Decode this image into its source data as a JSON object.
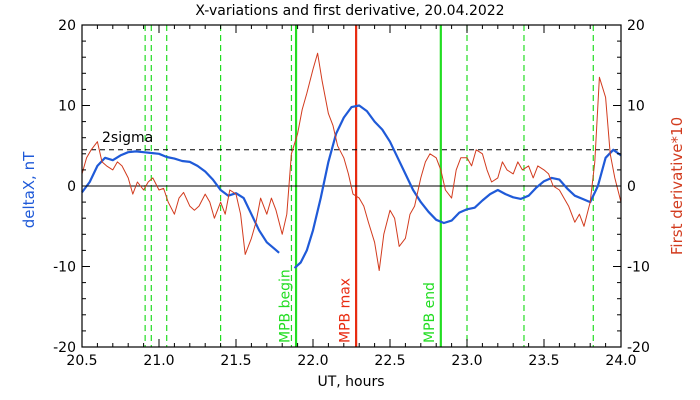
{
  "chart_data": {
    "type": "line",
    "title": "X-variations and first derivative, 20.04.2022",
    "xlabel": "UT, hours",
    "ylabel_left": "deltaX, nT",
    "ylabel_right": "First derivative*10",
    "xlim": [
      20.5,
      24.0
    ],
    "ylim": [
      -20,
      20
    ],
    "x_ticks": [
      20.5,
      21.0,
      21.5,
      22.0,
      22.5,
      23.0,
      23.5,
      24.0
    ],
    "y_ticks": [
      -20,
      -10,
      0,
      10,
      20
    ],
    "sigma_level": 4.5,
    "sigma_label": "2sigma",
    "colors": {
      "deltaX": "#1f5ad8",
      "derivative": "#d23b1e",
      "mpb_edge": "#22dd22",
      "mpb_max": "#e82a10",
      "axes": "#000000"
    },
    "series": [
      {
        "name": "deltaX, nT",
        "x": [
          20.5,
          20.55,
          20.6,
          20.65,
          20.7,
          20.75,
          20.8,
          20.85,
          20.9,
          20.95,
          21.0,
          21.05,
          21.1,
          21.15,
          21.2,
          21.25,
          21.3,
          21.35,
          21.4,
          21.45,
          21.5,
          21.55,
          21.6,
          21.65,
          21.7,
          21.75,
          21.78
        ],
        "values": [
          -0.8,
          0.5,
          2.5,
          3.5,
          3.2,
          3.8,
          4.2,
          4.3,
          4.2,
          4.1,
          4.0,
          3.6,
          3.4,
          3.1,
          3.0,
          2.5,
          1.8,
          0.8,
          -0.5,
          -1.2,
          -0.9,
          -1.5,
          -3.5,
          -5.5,
          -7.0,
          -7.8,
          -8.3
        ]
      },
      {
        "name": "deltaX, nT",
        "x": [
          21.88,
          21.92,
          21.96,
          22.0,
          22.05,
          22.1,
          22.15,
          22.2,
          22.25,
          22.3,
          22.35,
          22.4,
          22.45,
          22.5,
          22.55,
          22.6,
          22.65,
          22.7,
          22.75,
          22.8,
          22.85,
          22.9,
          22.95,
          23.0,
          23.05,
          23.1,
          23.15,
          23.2,
          23.25,
          23.3,
          23.35,
          23.4,
          23.45,
          23.5,
          23.55,
          23.6,
          23.65,
          23.7,
          23.75,
          23.8,
          23.85,
          23.9,
          23.95,
          24.0
        ],
        "values": [
          -10.2,
          -9.5,
          -8.0,
          -5.5,
          -1.5,
          3.0,
          6.5,
          8.5,
          9.8,
          10.0,
          9.3,
          8.0,
          7.0,
          5.5,
          3.5,
          1.5,
          -0.5,
          -2.0,
          -3.2,
          -4.2,
          -4.6,
          -4.3,
          -3.3,
          -2.9,
          -2.7,
          -1.8,
          -1.0,
          -0.5,
          -1.0,
          -1.4,
          -1.6,
          -1.2,
          -0.2,
          0.6,
          1.0,
          0.8,
          -0.3,
          -1.2,
          -1.6,
          -2.0,
          0.0,
          3.5,
          4.5,
          3.8
        ]
      },
      {
        "name": "First derivative*10",
        "x": [
          20.5,
          20.53,
          20.56,
          20.6,
          20.63,
          20.66,
          20.7,
          20.73,
          20.76,
          20.8,
          20.83,
          20.86,
          20.9,
          20.93,
          20.96,
          21.0,
          21.03,
          21.06,
          21.1,
          21.13,
          21.16,
          21.2,
          21.23,
          21.26,
          21.3,
          21.33,
          21.36,
          21.4,
          21.43,
          21.46,
          21.5,
          21.53,
          21.56,
          21.6,
          21.63,
          21.66,
          21.7,
          21.73,
          21.76,
          21.8,
          21.83,
          21.86,
          21.9,
          21.93,
          21.96,
          22.0,
          22.03,
          22.06,
          22.1,
          22.13,
          22.16,
          22.2,
          22.23,
          22.26,
          22.3,
          22.33,
          22.36,
          22.4,
          22.43,
          22.46,
          22.5,
          22.53,
          22.56,
          22.6,
          22.63,
          22.66,
          22.7,
          22.73,
          22.76,
          22.8,
          22.83,
          22.86,
          22.9,
          22.93,
          22.96,
          23.0,
          23.03,
          23.06,
          23.1,
          23.13,
          23.16,
          23.2,
          23.23,
          23.26,
          23.3,
          23.33,
          23.36,
          23.4,
          23.43,
          23.46,
          23.5,
          23.53,
          23.56,
          23.6,
          23.63,
          23.66,
          23.7,
          23.73,
          23.76,
          23.8,
          23.83,
          23.86,
          23.9,
          23.93,
          23.96,
          24.0
        ],
        "values": [
          1.5,
          3.5,
          4.5,
          5.5,
          3.0,
          2.5,
          2.0,
          3.0,
          2.5,
          1.0,
          -1.0,
          0.5,
          -0.5,
          0.5,
          1.0,
          -0.5,
          -0.3,
          -2.0,
          -3.5,
          -1.5,
          -0.8,
          -2.5,
          -3.0,
          -2.5,
          -1.0,
          -2.0,
          -4.0,
          -2.0,
          -3.5,
          -0.5,
          -1.0,
          -3.5,
          -8.5,
          -6.5,
          -4.5,
          -1.5,
          -3.5,
          -1.5,
          -3.0,
          -6.0,
          -3.5,
          4.0,
          6.5,
          9.5,
          11.5,
          14.5,
          16.5,
          13.0,
          9.0,
          7.5,
          5.0,
          3.5,
          1.5,
          -1.0,
          -1.5,
          -2.5,
          -4.5,
          -7.0,
          -10.5,
          -6.0,
          -3.0,
          -4.0,
          -7.5,
          -6.5,
          -3.5,
          -2.5,
          1.0,
          3.0,
          4.0,
          3.5,
          2.0,
          -0.5,
          -1.5,
          2.0,
          3.5,
          3.5,
          2.5,
          4.5,
          4.0,
          2.0,
          0.5,
          1.0,
          3.0,
          2.0,
          1.5,
          3.0,
          2.0,
          2.5,
          1.0,
          2.5,
          2.0,
          1.5,
          0.0,
          -0.5,
          -1.5,
          -2.5,
          -4.5,
          -3.5,
          -5.0,
          -2.0,
          3.0,
          13.5,
          11.0,
          4.0,
          1.0,
          -2.0
        ]
      }
    ],
    "reference_lines": [
      {
        "x": 20.91,
        "style": "dashed",
        "kind": "edge"
      },
      {
        "x": 20.95,
        "style": "dashed",
        "kind": "edge"
      },
      {
        "x": 21.05,
        "style": "dashed",
        "kind": "edge"
      },
      {
        "x": 21.4,
        "style": "dashed",
        "kind": "edge"
      },
      {
        "x": 21.86,
        "style": "dashed",
        "kind": "edge"
      },
      {
        "x": 21.89,
        "style": "solid",
        "kind": "edge"
      },
      {
        "x": 22.28,
        "style": "solid",
        "kind": "max"
      },
      {
        "x": 22.83,
        "style": "solid",
        "kind": "edge"
      },
      {
        "x": 23.0,
        "style": "dashed",
        "kind": "edge"
      },
      {
        "x": 23.37,
        "style": "dashed",
        "kind": "edge"
      },
      {
        "x": 23.82,
        "style": "dashed",
        "kind": "edge"
      }
    ],
    "annotations": [
      {
        "text": "MPB begin",
        "x": 21.86,
        "kind": "edge"
      },
      {
        "text": "MPB max",
        "x": 22.25,
        "kind": "max"
      },
      {
        "text": "MPB end",
        "x": 22.8,
        "kind": "edge"
      }
    ]
  }
}
